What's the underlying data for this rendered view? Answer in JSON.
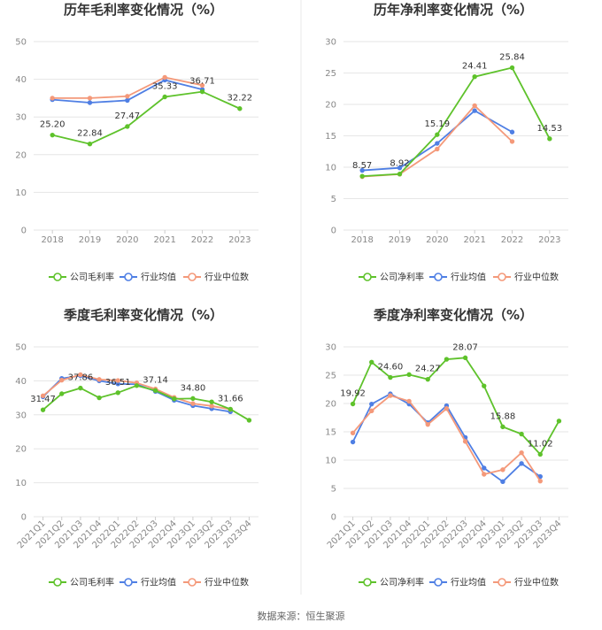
{
  "source": "数据来源：恒生聚源",
  "colors": {
    "company": "#5ec22b",
    "avg": "#4f7fe4",
    "median": "#f4997a"
  },
  "chart_data": [
    {
      "type": "line",
      "title": "历年毛利率变化情况（%）",
      "categories": [
        "2018",
        "2019",
        "2020",
        "2021",
        "2022",
        "2023"
      ],
      "ylim": [
        0,
        50
      ],
      "yticks": [
        0,
        10,
        20,
        30,
        40,
        50
      ],
      "series": [
        {
          "name": "公司毛利率",
          "key": "company",
          "values": [
            25.2,
            22.84,
            27.47,
            35.33,
            36.71,
            32.22
          ]
        },
        {
          "name": "行业均值",
          "key": "avg",
          "values": [
            34.6,
            33.8,
            34.4,
            39.8,
            37.3,
            null
          ]
        },
        {
          "name": "行业中位数",
          "key": "median",
          "values": [
            35.0,
            35.0,
            35.5,
            40.5,
            38.4,
            null
          ]
        }
      ],
      "labels": [
        {
          "i": 0,
          "text": "25.20"
        },
        {
          "i": 1,
          "text": "22.84"
        },
        {
          "i": 2,
          "text": "27.47"
        },
        {
          "i": 3,
          "text": "35.33"
        },
        {
          "i": 4,
          "text": "36.71"
        },
        {
          "i": 5,
          "text": "32.22"
        }
      ],
      "rotate_ticks": false
    },
    {
      "type": "line",
      "title": "历年净利率变化情况（%）",
      "categories": [
        "2018",
        "2019",
        "2020",
        "2021",
        "2022",
        "2023"
      ],
      "ylim": [
        0,
        30
      ],
      "yticks": [
        0,
        5,
        10,
        15,
        20,
        25,
        30
      ],
      "series": [
        {
          "name": "公司净利率",
          "key": "company",
          "values": [
            8.57,
            8.92,
            15.19,
            24.41,
            25.84,
            14.53
          ]
        },
        {
          "name": "行业均值",
          "key": "avg",
          "values": [
            9.5,
            9.9,
            13.8,
            19.0,
            15.6,
            null
          ]
        },
        {
          "name": "行业中位数",
          "key": "median",
          "values": [
            8.5,
            8.9,
            12.9,
            19.8,
            14.1,
            null
          ]
        }
      ],
      "labels": [
        {
          "i": 0,
          "text": "8.57"
        },
        {
          "i": 1,
          "text": "8.92"
        },
        {
          "i": 2,
          "text": "15.19"
        },
        {
          "i": 3,
          "text": "24.41"
        },
        {
          "i": 4,
          "text": "25.84"
        },
        {
          "i": 5,
          "text": "14.53"
        }
      ],
      "rotate_ticks": false
    },
    {
      "type": "line",
      "title": "季度毛利率变化情况（%）",
      "categories": [
        "2021Q1",
        "2021Q2",
        "2021Q3",
        "2021Q4",
        "2022Q1",
        "2022Q2",
        "2022Q3",
        "2022Q4",
        "2023Q1",
        "2023Q2",
        "2023Q3",
        "2023Q4"
      ],
      "ylim": [
        0,
        50
      ],
      "yticks": [
        0,
        10,
        20,
        30,
        40,
        50
      ],
      "series": [
        {
          "name": "公司毛利率",
          "key": "company",
          "values": [
            31.47,
            36.2,
            37.86,
            35.0,
            36.51,
            38.6,
            37.14,
            34.7,
            34.8,
            33.8,
            31.66,
            28.4
          ]
        },
        {
          "name": "行业均值",
          "key": "avg",
          "values": [
            35.3,
            40.7,
            41.5,
            40.0,
            39.1,
            39.0,
            36.9,
            34.3,
            32.7,
            31.8,
            30.9,
            null
          ]
        },
        {
          "name": "行业中位数",
          "key": "median",
          "values": [
            35.6,
            40.2,
            41.8,
            40.4,
            40.1,
            39.4,
            37.6,
            35.1,
            33.3,
            32.6,
            31.6,
            null
          ]
        }
      ],
      "labels": [
        {
          "i": 0,
          "text": "31.47"
        },
        {
          "i": 2,
          "text": "37.86"
        },
        {
          "i": 4,
          "text": "36.51"
        },
        {
          "i": 6,
          "text": "37.14"
        },
        {
          "i": 8,
          "text": "34.80"
        },
        {
          "i": 10,
          "text": "31.66"
        }
      ],
      "rotate_ticks": true
    },
    {
      "type": "line",
      "title": "季度净利率变化情况（%）",
      "categories": [
        "2021Q1",
        "2021Q2",
        "2021Q3",
        "2021Q4",
        "2022Q1",
        "2022Q2",
        "2022Q3",
        "2022Q4",
        "2023Q1",
        "2023Q2",
        "2023Q3",
        "2023Q4"
      ],
      "ylim": [
        0,
        30
      ],
      "yticks": [
        0,
        5,
        10,
        15,
        20,
        25,
        30
      ],
      "series": [
        {
          "name": "公司净利率",
          "key": "company",
          "values": [
            19.92,
            27.3,
            24.6,
            25.1,
            24.27,
            27.8,
            28.07,
            23.1,
            15.88,
            14.6,
            11.02,
            16.9
          ]
        },
        {
          "name": "行业均值",
          "key": "avg",
          "values": [
            13.2,
            19.9,
            21.7,
            19.9,
            16.6,
            19.6,
            14.0,
            8.6,
            6.2,
            9.4,
            7.1,
            null
          ]
        },
        {
          "name": "行业中位数",
          "key": "median",
          "values": [
            14.8,
            18.7,
            21.4,
            20.4,
            16.3,
            19.1,
            13.3,
            7.5,
            8.3,
            11.3,
            6.3,
            null
          ]
        }
      ],
      "labels": [
        {
          "i": 0,
          "text": "19.92"
        },
        {
          "i": 2,
          "text": "24.60"
        },
        {
          "i": 4,
          "text": "24.27"
        },
        {
          "i": 6,
          "text": "28.07"
        },
        {
          "i": 8,
          "text": "15.88"
        },
        {
          "i": 10,
          "text": "11.02"
        }
      ],
      "rotate_ticks": true
    }
  ]
}
